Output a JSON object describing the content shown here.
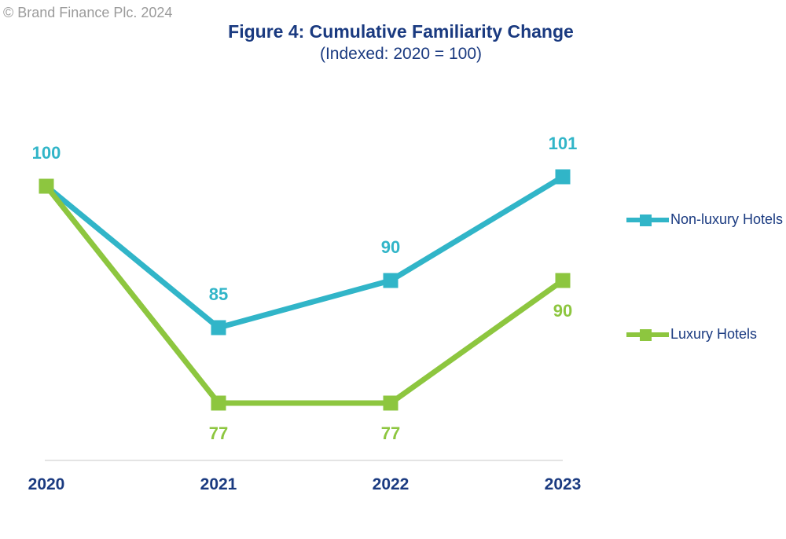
{
  "copyright": "© Brand Finance Plc. 2024",
  "header": {
    "title": "Figure 4: Cumulative Familiarity Change",
    "subtitle": "(Indexed: 2020 = 100)"
  },
  "colors": {
    "navy_text": "#1a3a80",
    "copyright_gray": "#9b9b9b",
    "axis_line": "#dcdcdc",
    "non_luxury_cyan": "#31b5c8",
    "luxury_green": "#8dc63f"
  },
  "chart_data": {
    "type": "line",
    "title": "Figure 4: Cumulative Familiarity Change",
    "subtitle": "(Indexed: 2020 = 100)",
    "categories": [
      "2020",
      "2021",
      "2022",
      "2023"
    ],
    "series": [
      {
        "name": "Non-luxury Hotels",
        "values": [
          100,
          85,
          90,
          101
        ],
        "labels": [
          "100",
          "85",
          "90",
          "101"
        ],
        "color": "#31b5c8",
        "marker": "square",
        "label_position": "above"
      },
      {
        "name": "Luxury Hotels",
        "values": [
          100,
          77,
          77,
          90
        ],
        "labels": [
          "",
          "77",
          "77",
          "90"
        ],
        "color": "#8dc63f",
        "marker": "square",
        "label_position": "below"
      }
    ],
    "baseline_value": 100,
    "xlabel": "",
    "ylabel": "",
    "grid": false,
    "legend_position": "right"
  }
}
